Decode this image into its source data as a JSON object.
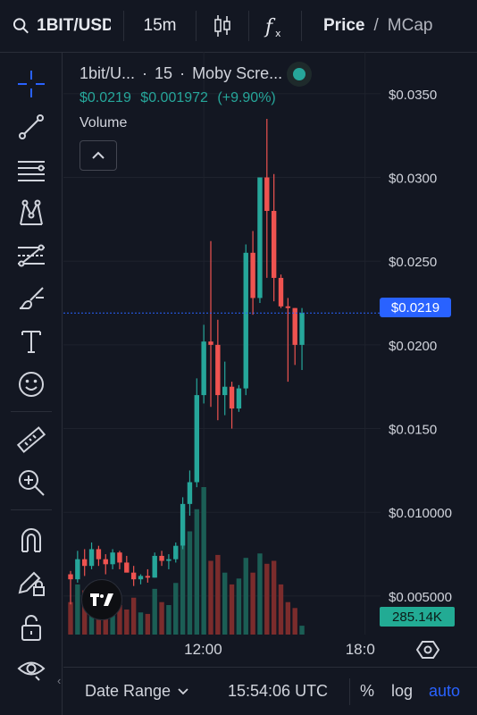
{
  "toolbar": {
    "symbol": "1BIT/USD",
    "interval": "15m",
    "price_label": "Price",
    "separator": "/",
    "mcap_label": "MCap",
    "icons": [
      "search-icon",
      "candlestick-icon",
      "indicators-icon"
    ]
  },
  "left_tools": [
    {
      "name": "crosshair-tool",
      "icon": "crosshair-icon"
    },
    {
      "name": "trend-line-tool",
      "icon": "trend-line-icon"
    },
    {
      "name": "horizontal-lines-tool",
      "icon": "horizontal-lines-icon"
    },
    {
      "name": "pattern-tool",
      "icon": "pattern-icon"
    },
    {
      "name": "fib-retracement-tool",
      "icon": "fib-icon"
    },
    {
      "name": "brush-tool",
      "icon": "brush-icon"
    },
    {
      "name": "text-tool",
      "icon": "text-icon"
    },
    {
      "name": "emoji-tool",
      "icon": "emoji-icon"
    },
    {
      "name": "ruler-tool",
      "icon": "ruler-icon"
    },
    {
      "name": "zoom-in-tool",
      "icon": "zoom-in-icon"
    },
    {
      "name": "magnet-tool",
      "icon": "magnet-icon"
    },
    {
      "name": "lock-drawing-tool",
      "icon": "pencil-lock-icon"
    },
    {
      "name": "unlock-tool",
      "icon": "unlock-icon"
    },
    {
      "name": "visibility-tool",
      "icon": "eye-icon"
    }
  ],
  "legend": {
    "title": "1bit/U...",
    "separator1": "·",
    "interval": "15",
    "separator2": "·",
    "exchange": "Moby Scre...",
    "price": "$0.0219",
    "change": "$0.001972",
    "change_pct": "(+9.90%)",
    "volume_label": "Volume"
  },
  "price_axis": {
    "ticks": [
      "$0.0350",
      "$0.0300",
      "$0.0250",
      "$0.0200",
      "$0.0150",
      "$0.010000",
      "$0.005000"
    ],
    "current_price": "$0.0219",
    "volume_value": "285.14K"
  },
  "time_axis": {
    "ticks": [
      "12:00",
      "18:0"
    ]
  },
  "bottom_bar": {
    "date_range": "Date Range",
    "time": "15:54:06 UTC",
    "percent": "%",
    "log": "log",
    "auto": "auto"
  },
  "colors": {
    "up": "#26a69a",
    "down": "#ef5350",
    "up_volume": "#1b5e55",
    "down_volume": "#7b2c2c",
    "accent": "#2962ff",
    "background": "#131722"
  },
  "chart_data": {
    "type": "candlestick",
    "ylim": [
      0.0027,
      0.0375
    ],
    "candles": [
      {
        "o": 0.0063,
        "h": 0.0065,
        "l": 0.0045,
        "c": 0.006,
        "v": 0.22
      },
      {
        "o": 0.006,
        "h": 0.0077,
        "l": 0.0058,
        "c": 0.0072,
        "v": 0.34
      },
      {
        "o": 0.0072,
        "h": 0.0078,
        "l": 0.0062,
        "c": 0.0068,
        "v": 0.3
      },
      {
        "o": 0.0068,
        "h": 0.0082,
        "l": 0.0066,
        "c": 0.0078,
        "v": 0.33
      },
      {
        "o": 0.0078,
        "h": 0.008,
        "l": 0.0068,
        "c": 0.0072,
        "v": 0.26
      },
      {
        "o": 0.0072,
        "h": 0.0075,
        "l": 0.0063,
        "c": 0.0069,
        "v": 0.24
      },
      {
        "o": 0.0069,
        "h": 0.0078,
        "l": 0.0066,
        "c": 0.0076,
        "v": 0.28
      },
      {
        "o": 0.0076,
        "h": 0.0077,
        "l": 0.0066,
        "c": 0.007,
        "v": 0.2
      },
      {
        "o": 0.007,
        "h": 0.0074,
        "l": 0.0065,
        "c": 0.0064,
        "v": 0.17
      },
      {
        "o": 0.0064,
        "h": 0.0068,
        "l": 0.0056,
        "c": 0.006,
        "v": 0.25
      },
      {
        "o": 0.006,
        "h": 0.0063,
        "l": 0.0057,
        "c": 0.0062,
        "v": 0.15
      },
      {
        "o": 0.0062,
        "h": 0.0066,
        "l": 0.0058,
        "c": 0.0061,
        "v": 0.14
      },
      {
        "o": 0.0061,
        "h": 0.0076,
        "l": 0.0061,
        "c": 0.0074,
        "v": 0.31
      },
      {
        "o": 0.0074,
        "h": 0.0077,
        "l": 0.0068,
        "c": 0.0071,
        "v": 0.22
      },
      {
        "o": 0.0071,
        "h": 0.0075,
        "l": 0.0066,
        "c": 0.0072,
        "v": 0.2
      },
      {
        "o": 0.0072,
        "h": 0.0082,
        "l": 0.007,
        "c": 0.008,
        "v": 0.35
      },
      {
        "o": 0.008,
        "h": 0.0109,
        "l": 0.0078,
        "c": 0.0105,
        "v": 0.6
      },
      {
        "o": 0.0105,
        "h": 0.0125,
        "l": 0.0098,
        "c": 0.0118,
        "v": 0.7
      },
      {
        "o": 0.0118,
        "h": 0.018,
        "l": 0.0115,
        "c": 0.017,
        "v": 0.85
      },
      {
        "o": 0.017,
        "h": 0.0212,
        "l": 0.0165,
        "c": 0.0202,
        "v": 1.0
      },
      {
        "o": 0.0202,
        "h": 0.0262,
        "l": 0.0163,
        "c": 0.02,
        "v": 0.5
      },
      {
        "o": 0.02,
        "h": 0.0215,
        "l": 0.0155,
        "c": 0.017,
        "v": 0.54
      },
      {
        "o": 0.017,
        "h": 0.019,
        "l": 0.0158,
        "c": 0.0175,
        "v": 0.42
      },
      {
        "o": 0.0175,
        "h": 0.0178,
        "l": 0.015,
        "c": 0.0162,
        "v": 0.34
      },
      {
        "o": 0.0162,
        "h": 0.0176,
        "l": 0.016,
        "c": 0.0174,
        "v": 0.38
      },
      {
        "o": 0.0174,
        "h": 0.026,
        "l": 0.017,
        "c": 0.0255,
        "v": 0.52
      },
      {
        "o": 0.0255,
        "h": 0.0268,
        "l": 0.0218,
        "c": 0.0228,
        "v": 0.42
      },
      {
        "o": 0.0228,
        "h": 0.03,
        "l": 0.0225,
        "c": 0.03,
        "v": 0.55
      },
      {
        "o": 0.03,
        "h": 0.0335,
        "l": 0.024,
        "c": 0.028,
        "v": 0.48
      },
      {
        "o": 0.028,
        "h": 0.0302,
        "l": 0.0226,
        "c": 0.024,
        "v": 0.5
      },
      {
        "o": 0.024,
        "h": 0.0242,
        "l": 0.0222,
        "c": 0.0223,
        "v": 0.34
      },
      {
        "o": 0.0223,
        "h": 0.0228,
        "l": 0.0178,
        "c": 0.0222,
        "v": 0.22
      },
      {
        "o": 0.0222,
        "h": 0.0222,
        "l": 0.0188,
        "c": 0.02,
        "v": 0.18
      },
      {
        "o": 0.02,
        "h": 0.0222,
        "l": 0.0185,
        "c": 0.0219,
        "v": 0.06
      }
    ]
  }
}
